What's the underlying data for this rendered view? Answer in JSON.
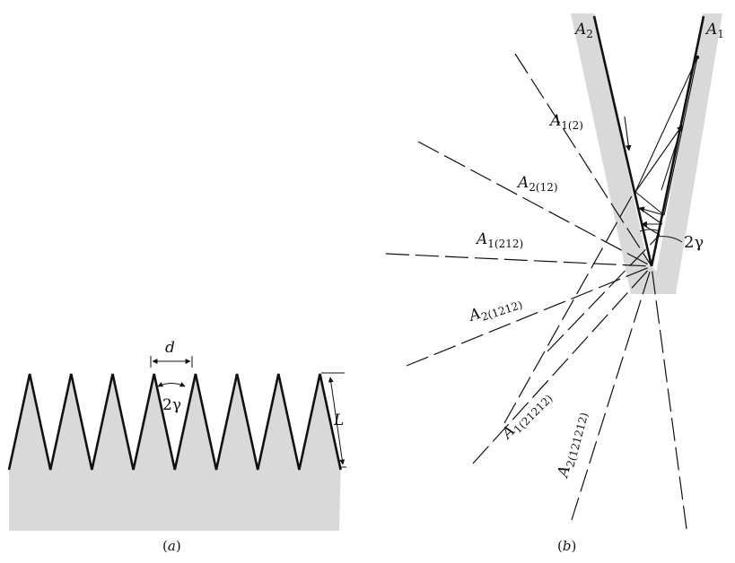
{
  "panel_a": {
    "caption_open": "(",
    "caption_letter": "a",
    "caption_close": ")",
    "label_d": "d",
    "label_angle": "2γ",
    "label_L": "L",
    "tooth_count": 8
  },
  "panel_b": {
    "caption_open": "(",
    "caption_letter": "b",
    "caption_close": ")",
    "label_angle": "2γ",
    "wall_left": {
      "letter": "A",
      "sub": "2"
    },
    "wall_right": {
      "letter": "A",
      "sub": "1"
    },
    "images": [
      {
        "letter": "A",
        "sub": "1(2)"
      },
      {
        "letter": "A",
        "sub": "2(12)"
      },
      {
        "letter": "A",
        "sub": "1(212)"
      },
      {
        "letter": "A",
        "sub": "2(1212)"
      },
      {
        "letter": "A",
        "sub": "1(21212)"
      },
      {
        "letter": "A",
        "sub": "2(121212)"
      }
    ]
  },
  "colors": {
    "fill": "#d9d9d9",
    "line": "#111111"
  }
}
